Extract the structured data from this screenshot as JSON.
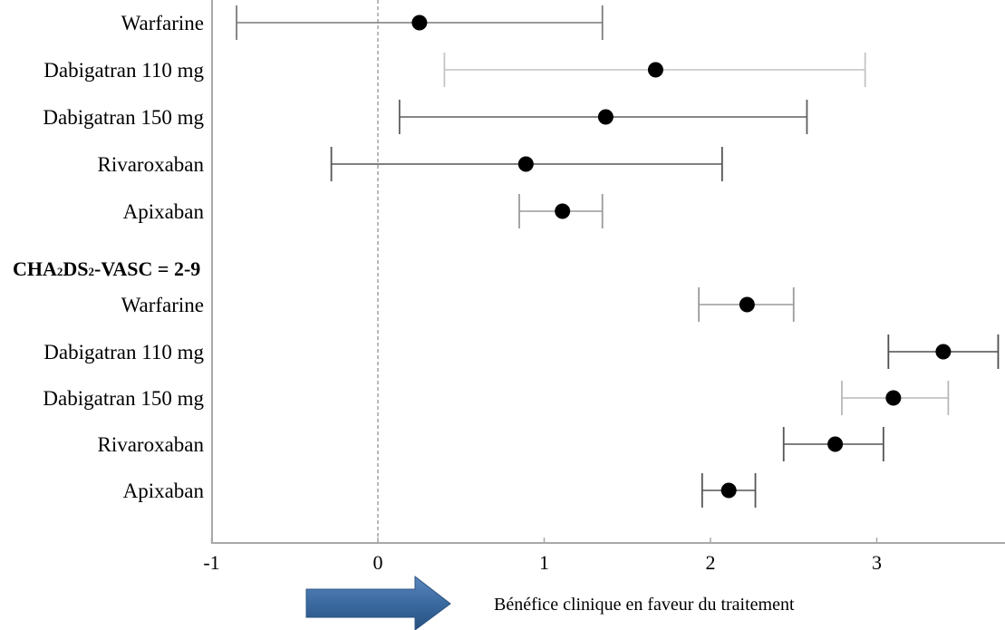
{
  "chart_data": {
    "type": "forest",
    "xlim": [
      -1,
      3.75
    ],
    "x_ticks": [
      "-1",
      "0",
      "1",
      "2",
      "3"
    ],
    "reference_line_x": 0,
    "groups": [
      {
        "label": "",
        "rows": [
          {
            "label": "Warfarine",
            "estimate": 0.25,
            "low": -0.85,
            "high": 1.35,
            "whisker_color": "#7a7a7a"
          },
          {
            "label": "Dabigatran 110 mg",
            "estimate": 1.67,
            "low": 0.4,
            "high": 2.93,
            "whisker_color": "#c4c4c4"
          },
          {
            "label": "Dabigatran 150 mg",
            "estimate": 1.37,
            "low": 0.13,
            "high": 2.58,
            "whisker_color": "#5e5e5e"
          },
          {
            "label": "Rivaroxaban",
            "estimate": 0.89,
            "low": -0.28,
            "high": 2.07,
            "whisker_color": "#555555"
          },
          {
            "label": "Apixaban",
            "estimate": 1.11,
            "low": 0.85,
            "high": 1.35,
            "whisker_color": "#9a9a9a"
          }
        ]
      },
      {
        "label": "CHA2DS2-VASC = 2-9",
        "rows": [
          {
            "label": "Warfarine",
            "estimate": 2.22,
            "low": 1.93,
            "high": 2.5,
            "whisker_color": "#9a9a9a"
          },
          {
            "label": "Dabigatran 110 mg",
            "estimate": 3.4,
            "low": 3.07,
            "high": 3.73,
            "whisker_color": "#4e4e4e"
          },
          {
            "label": "Dabigatran 150 mg",
            "estimate": 3.1,
            "low": 2.79,
            "high": 3.43,
            "whisker_color": "#b8b8b8"
          },
          {
            "label": "Rivaroxaban",
            "estimate": 2.75,
            "low": 2.44,
            "high": 3.04,
            "whisker_color": "#555555"
          },
          {
            "label": "Apixaban",
            "estimate": 2.11,
            "low": 1.95,
            "high": 2.27,
            "whisker_color": "#555555"
          }
        ]
      }
    ],
    "footer_label": "Bénéfice clinique  en  faveur du traitement",
    "arrow_color": "#3b6aa0"
  }
}
